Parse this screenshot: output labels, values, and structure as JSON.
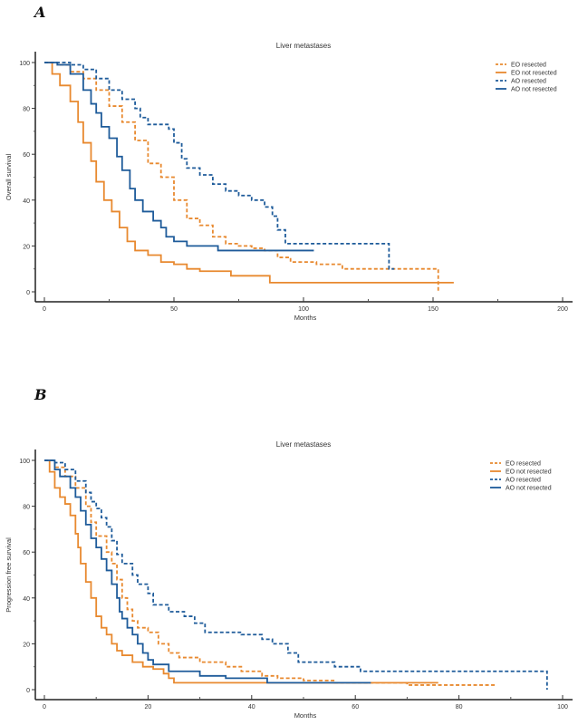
{
  "colors": {
    "orange": "#e8892f",
    "blue": "#1e5b9a"
  },
  "chart_data": [
    {
      "panel_label": "A",
      "type": "line",
      "step": true,
      "title": "Liver metastases",
      "xlabel": "Months",
      "ylabel": "Overall survival",
      "xlim": [
        0,
        200
      ],
      "ylim": [
        0,
        100
      ],
      "xticks": [
        "0",
        "50",
        "100",
        "150",
        "200"
      ],
      "yticks": [
        "0",
        "20",
        "40",
        "60",
        "80",
        "100"
      ],
      "legend_position": "top-right",
      "grid": false,
      "series": [
        {
          "name": "EO resected",
          "color": "orange",
          "dashed": true,
          "x": [
            0,
            5,
            10,
            15,
            20,
            25,
            30,
            35,
            40,
            45,
            50,
            55,
            60,
            65,
            70,
            75,
            80,
            85,
            90,
            95,
            105,
            115,
            152,
            152
          ],
          "y": [
            100,
            99,
            96,
            93,
            88,
            81,
            74,
            66,
            56,
            50,
            40,
            32,
            29,
            24,
            21,
            20,
            19,
            18,
            15,
            13,
            12,
            10,
            10,
            0
          ]
        },
        {
          "name": "EO not resected",
          "color": "orange",
          "dashed": false,
          "x": [
            0,
            3,
            6,
            10,
            13,
            15,
            18,
            20,
            23,
            26,
            29,
            32,
            35,
            40,
            45,
            50,
            55,
            60,
            72,
            87,
            158
          ],
          "y": [
            100,
            95,
            90,
            83,
            74,
            65,
            57,
            48,
            40,
            35,
            28,
            22,
            18,
            16,
            13,
            12,
            10,
            9,
            7,
            4,
            4
          ]
        },
        {
          "name": "AO resected",
          "color": "blue",
          "dashed": true,
          "x": [
            0,
            10,
            15,
            20,
            25,
            30,
            35,
            37,
            40,
            48,
            50,
            53,
            55,
            60,
            65,
            70,
            75,
            80,
            85,
            88,
            90,
            93,
            133,
            135
          ],
          "y": [
            100,
            99,
            97,
            93,
            88,
            84,
            80,
            76,
            73,
            71,
            65,
            58,
            54,
            51,
            47,
            44,
            42,
            40,
            37,
            33,
            27,
            21,
            10,
            10
          ]
        },
        {
          "name": "AO not resected",
          "color": "blue",
          "dashed": false,
          "x": [
            0,
            5,
            10,
            15,
            18,
            20,
            22,
            25,
            28,
            30,
            33,
            35,
            38,
            42,
            45,
            47,
            50,
            55,
            67,
            104
          ],
          "y": [
            100,
            99,
            95,
            88,
            82,
            78,
            72,
            67,
            59,
            53,
            45,
            40,
            35,
            31,
            28,
            24,
            22,
            20,
            18,
            18
          ]
        }
      ]
    },
    {
      "panel_label": "B",
      "type": "line",
      "step": true,
      "title": "Liver metastases",
      "xlabel": "Months",
      "ylabel": "Progression free survival",
      "xlim": [
        0,
        100
      ],
      "ylim": [
        0,
        100
      ],
      "xticks": [
        "0",
        "20",
        "40",
        "60",
        "80",
        "100"
      ],
      "yticks": [
        "0",
        "20",
        "40",
        "60",
        "80",
        "100"
      ],
      "legend_position": "top-right",
      "grid": false,
      "series": [
        {
          "name": "EO resected",
          "color": "orange",
          "dashed": true,
          "x": [
            0,
            2,
            4,
            6,
            8,
            9,
            10,
            12,
            13,
            14,
            15,
            16,
            17,
            18,
            20,
            22,
            24,
            26,
            30,
            35,
            38,
            42,
            45,
            50,
            56,
            70,
            87
          ],
          "y": [
            100,
            97,
            93,
            88,
            80,
            73,
            67,
            60,
            55,
            48,
            40,
            35,
            30,
            27,
            25,
            20,
            16,
            14,
            12,
            10,
            8,
            6,
            5,
            4,
            3,
            2,
            2
          ]
        },
        {
          "name": "EO not resected",
          "color": "orange",
          "dashed": false,
          "x": [
            0,
            1,
            2,
            3,
            4,
            5,
            6,
            6.5,
            7,
            8,
            9,
            10,
            11,
            12,
            13,
            14,
            15,
            17,
            19,
            21,
            23,
            24,
            25,
            76
          ],
          "y": [
            100,
            95,
            88,
            84,
            81,
            76,
            68,
            62,
            55,
            47,
            40,
            32,
            27,
            24,
            20,
            17,
            15,
            12,
            10,
            9,
            7,
            5,
            3,
            3
          ]
        },
        {
          "name": "AO resected",
          "color": "blue",
          "dashed": true,
          "x": [
            0,
            2,
            4,
            6,
            8,
            9,
            10,
            11,
            12,
            13,
            14,
            15,
            17,
            18,
            20,
            21,
            24,
            27,
            29,
            31,
            38,
            42,
            44,
            47,
            49,
            56,
            61,
            97,
            97
          ],
          "y": [
            100,
            99,
            96,
            91,
            86,
            82,
            79,
            75,
            71,
            65,
            59,
            55,
            50,
            46,
            42,
            37,
            34,
            32,
            29,
            25,
            24,
            22,
            20,
            16,
            12,
            10,
            8,
            8,
            0
          ]
        },
        {
          "name": "AO not resected",
          "color": "blue",
          "dashed": false,
          "x": [
            0,
            2,
            3,
            5,
            6,
            7,
            8,
            9,
            10,
            11,
            12,
            13,
            14,
            14.5,
            15,
            16,
            17,
            18,
            19,
            20,
            21,
            24,
            30,
            35,
            43,
            63
          ],
          "y": [
            100,
            96,
            93,
            88,
            84,
            78,
            72,
            66,
            62,
            57,
            52,
            46,
            40,
            34,
            31,
            27,
            24,
            20,
            16,
            13,
            11,
            8,
            6,
            5,
            3,
            3
          ]
        }
      ]
    }
  ]
}
